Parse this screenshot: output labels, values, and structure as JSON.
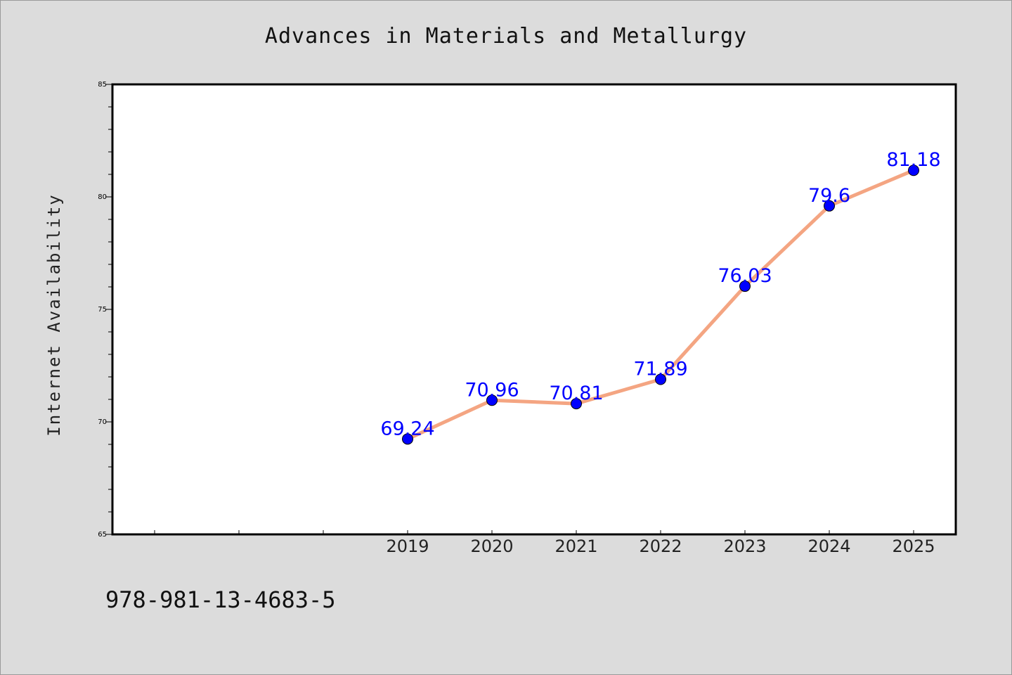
{
  "title": "Advances in Materials and Metallurgy",
  "footer": "978-981-13-4683-5",
  "chart_data": {
    "type": "line",
    "title": "Advances in Materials and Metallurgy",
    "xlabel": "",
    "ylabel": "Internet Availability",
    "categories": [
      "2019",
      "2020",
      "2021",
      "2022",
      "2023",
      "2024",
      "2025"
    ],
    "series": [
      {
        "values": [
          69.24,
          70.96,
          70.81,
          71.89,
          76.03,
          79.6,
          81.18
        ],
        "labels": [
          "69.24",
          "70.96",
          "70.81",
          "71.89",
          "76.03",
          "79.6",
          "81.18"
        ]
      }
    ],
    "y_ticks": [
      "65",
      "70",
      "75",
      "80",
      "85"
    ],
    "ylim": [
      65,
      85
    ],
    "grid": false,
    "colors": {
      "line": "#f4a582",
      "marker": "#0000ff",
      "data_label": "#0000ff",
      "background": "#dcdcdc",
      "plot_background": "#ffffff"
    }
  }
}
